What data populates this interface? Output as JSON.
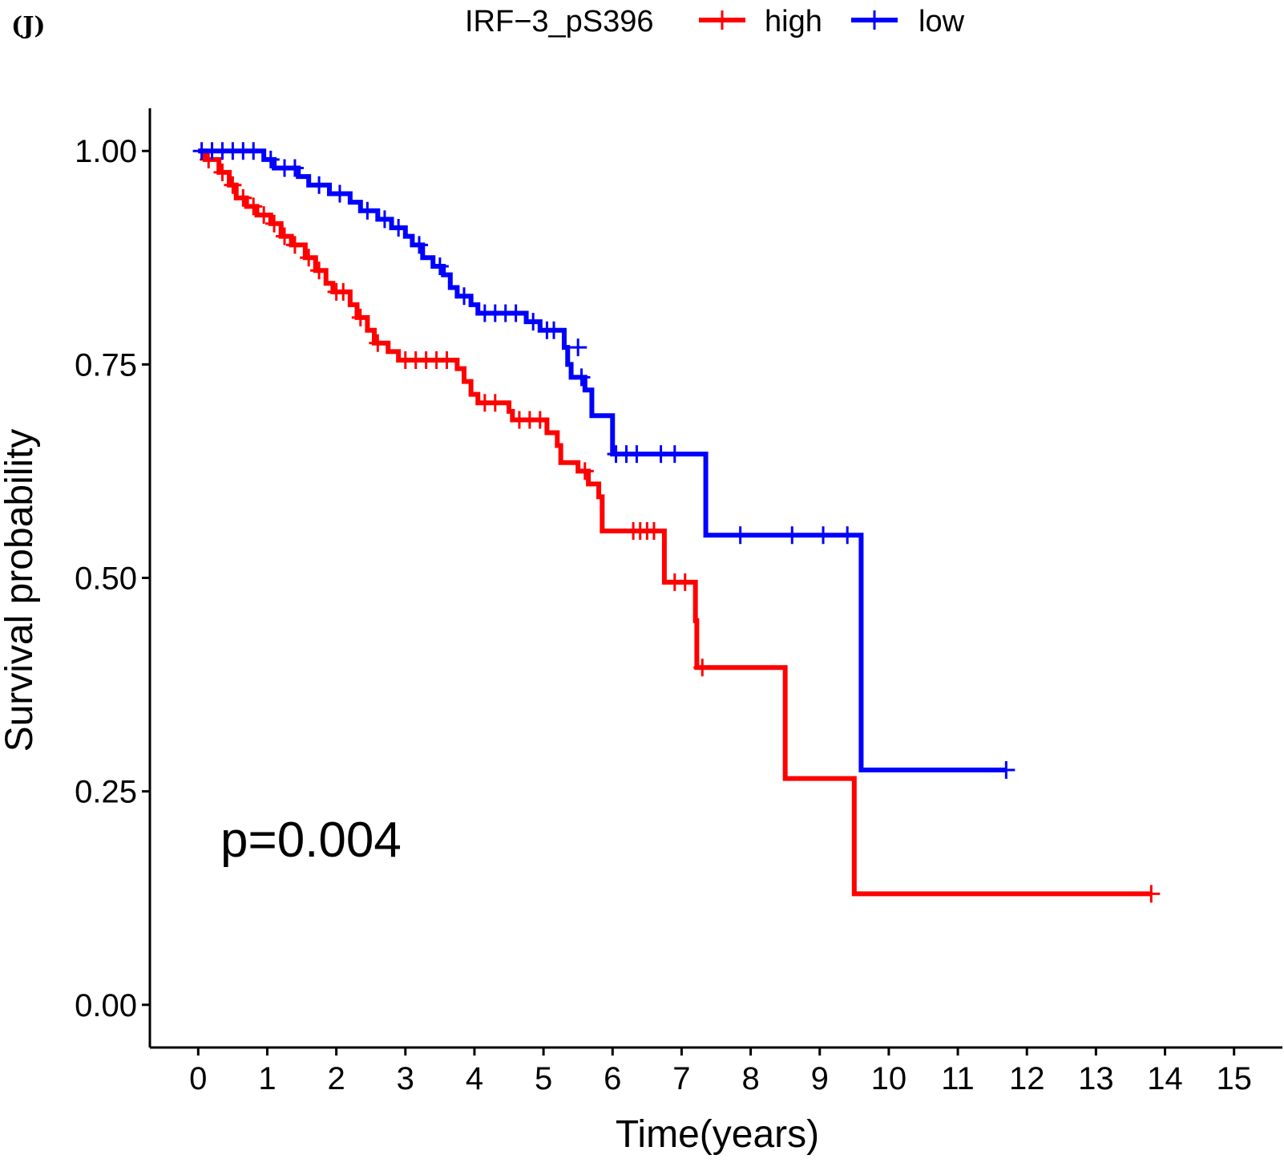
{
  "panel_label": "(J)",
  "chart_data": {
    "type": "line",
    "subtype": "kaplan-meier",
    "title": "",
    "xlabel": "Time(years)",
    "ylabel": "Survival probability",
    "xlim": [
      -0.7,
      15.7
    ],
    "ylim": [
      -0.05,
      1.05
    ],
    "xticks": [
      0,
      1,
      2,
      3,
      4,
      5,
      6,
      7,
      8,
      9,
      10,
      11,
      12,
      13,
      14,
      15
    ],
    "yticks": [
      0,
      0.25,
      0.5,
      0.75,
      1.0
    ],
    "ytick_labels": [
      "0.00",
      "0.25",
      "0.50",
      "0.75",
      "1.00"
    ],
    "legend": {
      "title": "IRF−3_pS396",
      "position": "top"
    },
    "annotation": "p=0.004",
    "series": [
      {
        "name": "high",
        "color": "#ff0000",
        "steps": [
          [
            0.0,
            1.0
          ],
          [
            0.1,
            0.99
          ],
          [
            0.3,
            0.975
          ],
          [
            0.45,
            0.96
          ],
          [
            0.55,
            0.945
          ],
          [
            0.7,
            0.935
          ],
          [
            0.85,
            0.925
          ],
          [
            1.05,
            0.915
          ],
          [
            1.2,
            0.9
          ],
          [
            1.35,
            0.89
          ],
          [
            1.55,
            0.875
          ],
          [
            1.7,
            0.86
          ],
          [
            1.85,
            0.845
          ],
          [
            1.95,
            0.835
          ],
          [
            2.2,
            0.82
          ],
          [
            2.3,
            0.805
          ],
          [
            2.45,
            0.79
          ],
          [
            2.55,
            0.775
          ],
          [
            2.75,
            0.765
          ],
          [
            2.9,
            0.755
          ],
          [
            3.75,
            0.745
          ],
          [
            3.85,
            0.73
          ],
          [
            3.95,
            0.715
          ],
          [
            4.05,
            0.705
          ],
          [
            4.5,
            0.695
          ],
          [
            4.55,
            0.685
          ],
          [
            5.05,
            0.67
          ],
          [
            5.2,
            0.655
          ],
          [
            5.25,
            0.635
          ],
          [
            5.5,
            0.625
          ],
          [
            5.65,
            0.61
          ],
          [
            5.8,
            0.595
          ],
          [
            5.85,
            0.555
          ],
          [
            6.75,
            0.495
          ],
          [
            7.2,
            0.45
          ],
          [
            7.22,
            0.395
          ],
          [
            8.5,
            0.265
          ],
          [
            9.5,
            0.13
          ],
          [
            13.8,
            0.13
          ]
        ],
        "censor": [
          [
            0.15,
            0.99
          ],
          [
            0.35,
            0.975
          ],
          [
            0.5,
            0.96
          ],
          [
            0.65,
            0.945
          ],
          [
            0.8,
            0.935
          ],
          [
            0.95,
            0.925
          ],
          [
            1.1,
            0.915
          ],
          [
            1.25,
            0.9
          ],
          [
            1.4,
            0.89
          ],
          [
            1.6,
            0.875
          ],
          [
            1.75,
            0.86
          ],
          [
            2.0,
            0.835
          ],
          [
            2.1,
            0.835
          ],
          [
            2.35,
            0.805
          ],
          [
            2.6,
            0.775
          ],
          [
            3.0,
            0.755
          ],
          [
            3.15,
            0.755
          ],
          [
            3.3,
            0.755
          ],
          [
            3.45,
            0.755
          ],
          [
            3.6,
            0.755
          ],
          [
            4.15,
            0.705
          ],
          [
            4.3,
            0.705
          ],
          [
            4.65,
            0.685
          ],
          [
            4.8,
            0.685
          ],
          [
            4.95,
            0.685
          ],
          [
            5.6,
            0.625
          ],
          [
            6.3,
            0.555
          ],
          [
            6.4,
            0.555
          ],
          [
            6.5,
            0.555
          ],
          [
            6.6,
            0.555
          ],
          [
            6.9,
            0.495
          ],
          [
            7.05,
            0.495
          ],
          [
            7.3,
            0.395
          ],
          [
            13.8,
            0.13
          ]
        ]
      },
      {
        "name": "low",
        "color": "#0000ff",
        "steps": [
          [
            0.0,
            1.0
          ],
          [
            0.95,
            0.99
          ],
          [
            1.1,
            0.98
          ],
          [
            1.45,
            0.97
          ],
          [
            1.6,
            0.96
          ],
          [
            1.9,
            0.95
          ],
          [
            2.2,
            0.94
          ],
          [
            2.35,
            0.93
          ],
          [
            2.6,
            0.92
          ],
          [
            2.8,
            0.91
          ],
          [
            3.0,
            0.9
          ],
          [
            3.1,
            0.89
          ],
          [
            3.25,
            0.875
          ],
          [
            3.4,
            0.865
          ],
          [
            3.55,
            0.855
          ],
          [
            3.65,
            0.84
          ],
          [
            3.75,
            0.83
          ],
          [
            3.95,
            0.82
          ],
          [
            4.05,
            0.81
          ],
          [
            4.75,
            0.8
          ],
          [
            4.95,
            0.79
          ],
          [
            5.3,
            0.77
          ],
          [
            5.35,
            0.75
          ],
          [
            5.4,
            0.735
          ],
          [
            5.6,
            0.72
          ],
          [
            5.7,
            0.69
          ],
          [
            6.0,
            0.645
          ],
          [
            7.35,
            0.55
          ],
          [
            9.6,
            0.275
          ],
          [
            11.7,
            0.275
          ]
        ],
        "censor": [
          [
            0.05,
            1.0
          ],
          [
            0.2,
            1.0
          ],
          [
            0.35,
            1.0
          ],
          [
            0.5,
            1.0
          ],
          [
            0.65,
            1.0
          ],
          [
            0.8,
            1.0
          ],
          [
            1.05,
            0.99
          ],
          [
            1.25,
            0.98
          ],
          [
            1.4,
            0.98
          ],
          [
            1.75,
            0.96
          ],
          [
            2.05,
            0.95
          ],
          [
            2.45,
            0.93
          ],
          [
            2.7,
            0.92
          ],
          [
            2.9,
            0.91
          ],
          [
            3.2,
            0.89
          ],
          [
            3.5,
            0.865
          ],
          [
            3.85,
            0.83
          ],
          [
            4.15,
            0.81
          ],
          [
            4.3,
            0.81
          ],
          [
            4.45,
            0.81
          ],
          [
            4.6,
            0.81
          ],
          [
            4.85,
            0.8
          ],
          [
            5.05,
            0.79
          ],
          [
            5.15,
            0.79
          ],
          [
            5.5,
            0.77
          ],
          [
            5.55,
            0.735
          ],
          [
            6.05,
            0.645
          ],
          [
            6.2,
            0.645
          ],
          [
            6.35,
            0.645
          ],
          [
            6.7,
            0.645
          ],
          [
            6.9,
            0.645
          ],
          [
            7.85,
            0.55
          ],
          [
            8.6,
            0.55
          ],
          [
            9.05,
            0.55
          ],
          [
            9.4,
            0.55
          ],
          [
            11.7,
            0.275
          ]
        ]
      }
    ]
  }
}
